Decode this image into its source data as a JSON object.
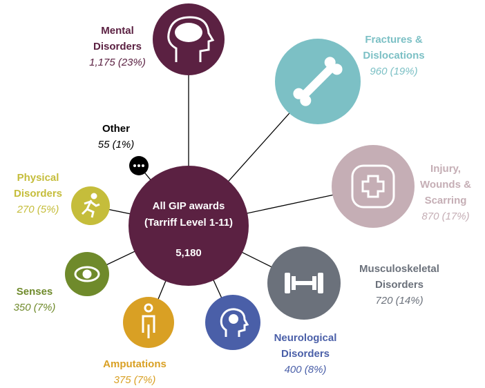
{
  "center": {
    "title": "All GIP awards",
    "subtitle": "(Tarriff Level 1-11)",
    "total": "5,180"
  },
  "nodes": [
    {
      "label": [
        "Mental",
        "Disorders"
      ],
      "value": "1,175 (23%)",
      "color": "#5b2142"
    },
    {
      "label": [
        "Fractures &",
        "Dislocations"
      ],
      "value": "960 (19%)",
      "color": "#7cc0c5"
    },
    {
      "label": [
        "Injury,",
        "Wounds &",
        "Scarring"
      ],
      "value": "870 (17%)",
      "color": "#c5aeb5"
    },
    {
      "label": [
        "Musculoskeletal",
        "Disorders"
      ],
      "value": "720 (14%)",
      "color": "#6b717b"
    },
    {
      "label": [
        "Neurological",
        "Disorders"
      ],
      "value": "400 (8%)",
      "color": "#4a5fa8"
    },
    {
      "label": [
        "Amputations"
      ],
      "value": "375 (7%)",
      "color": "#d9a024"
    },
    {
      "label": [
        "Senses"
      ],
      "value": "350 (7%)",
      "color": "#6f8a2b"
    },
    {
      "label": [
        "Physical",
        "Disorders"
      ],
      "value": "270 (5%)",
      "color": "#c5bd3b"
    },
    {
      "label": [
        "Other"
      ],
      "value": "55 (1%)",
      "color": "#000000"
    }
  ]
}
